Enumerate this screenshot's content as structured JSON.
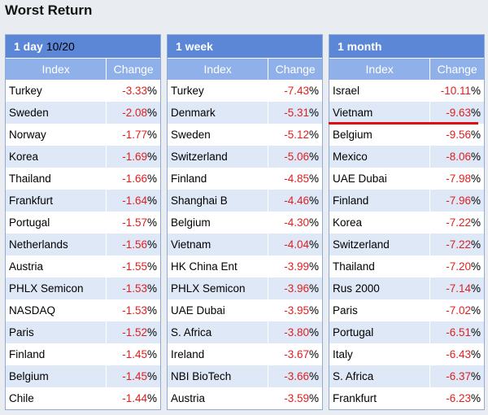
{
  "title": "Worst Return",
  "columns": {
    "index": "Index",
    "change": "Change"
  },
  "panels": [
    {
      "label": "1 day",
      "date": "10/20",
      "rows": [
        {
          "name": "Turkey",
          "value": "-3.33"
        },
        {
          "name": "Sweden",
          "value": "-2.08"
        },
        {
          "name": "Norway",
          "value": "-1.77"
        },
        {
          "name": "Korea",
          "value": "-1.69"
        },
        {
          "name": "Thailand",
          "value": "-1.66"
        },
        {
          "name": "Frankfurt",
          "value": "-1.64"
        },
        {
          "name": "Portugal",
          "value": "-1.57"
        },
        {
          "name": "Netherlands",
          "value": "-1.56"
        },
        {
          "name": "Austria",
          "value": "-1.55"
        },
        {
          "name": "PHLX Semicon",
          "value": "-1.53"
        },
        {
          "name": "NASDAQ",
          "value": "-1.53"
        },
        {
          "name": "Paris",
          "value": "-1.52"
        },
        {
          "name": "Finland",
          "value": "-1.45"
        },
        {
          "name": "Belgium",
          "value": "-1.45"
        },
        {
          "name": "Chile",
          "value": "-1.44"
        }
      ]
    },
    {
      "label": "1 week",
      "date": "",
      "rows": [
        {
          "name": "Turkey",
          "value": "-7.43"
        },
        {
          "name": "Denmark",
          "value": "-5.31"
        },
        {
          "name": "Sweden",
          "value": "-5.12"
        },
        {
          "name": "Switzerland",
          "value": "-5.06"
        },
        {
          "name": "Finland",
          "value": "-4.85"
        },
        {
          "name": "Shanghai B",
          "value": "-4.46"
        },
        {
          "name": "Belgium",
          "value": "-4.30"
        },
        {
          "name": "Vietnam",
          "value": "-4.04"
        },
        {
          "name": "HK China Ent",
          "value": "-3.99"
        },
        {
          "name": "PHLX Semicon",
          "value": "-3.96"
        },
        {
          "name": "UAE Dubai",
          "value": "-3.95"
        },
        {
          "name": "S. Africa",
          "value": "-3.80"
        },
        {
          "name": "Ireland",
          "value": "-3.67"
        },
        {
          "name": "NBI BioTech",
          "value": "-3.66"
        },
        {
          "name": "Austria",
          "value": "-3.59"
        }
      ]
    },
    {
      "label": "1 month",
      "date": "",
      "rows": [
        {
          "name": "Israel",
          "value": "-10.11"
        },
        {
          "name": "Vietnam",
          "value": "-9.63"
        },
        {
          "name": "Belgium",
          "value": "-9.56"
        },
        {
          "name": "Mexico",
          "value": "-8.06"
        },
        {
          "name": "UAE Dubai",
          "value": "-7.98"
        },
        {
          "name": "Finland",
          "value": "-7.96"
        },
        {
          "name": "Korea",
          "value": "-7.22"
        },
        {
          "name": "Switzerland",
          "value": "-7.22"
        },
        {
          "name": "Thailand",
          "value": "-7.20"
        },
        {
          "name": "Rus 2000",
          "value": "-7.14"
        },
        {
          "name": "Paris",
          "value": "-7.02"
        },
        {
          "name": "Portugal",
          "value": "-6.51"
        },
        {
          "name": "Italy",
          "value": "-6.43"
        },
        {
          "name": "S. Africa",
          "value": "-6.37"
        },
        {
          "name": "Frankfurt",
          "value": "-6.23"
        }
      ]
    }
  ],
  "pct_symbol": "%",
  "colors": {
    "negative": "#e02020",
    "header": "#5b87d6",
    "subheader": "#8fb0e8",
    "highlight_line": "#e01010"
  }
}
